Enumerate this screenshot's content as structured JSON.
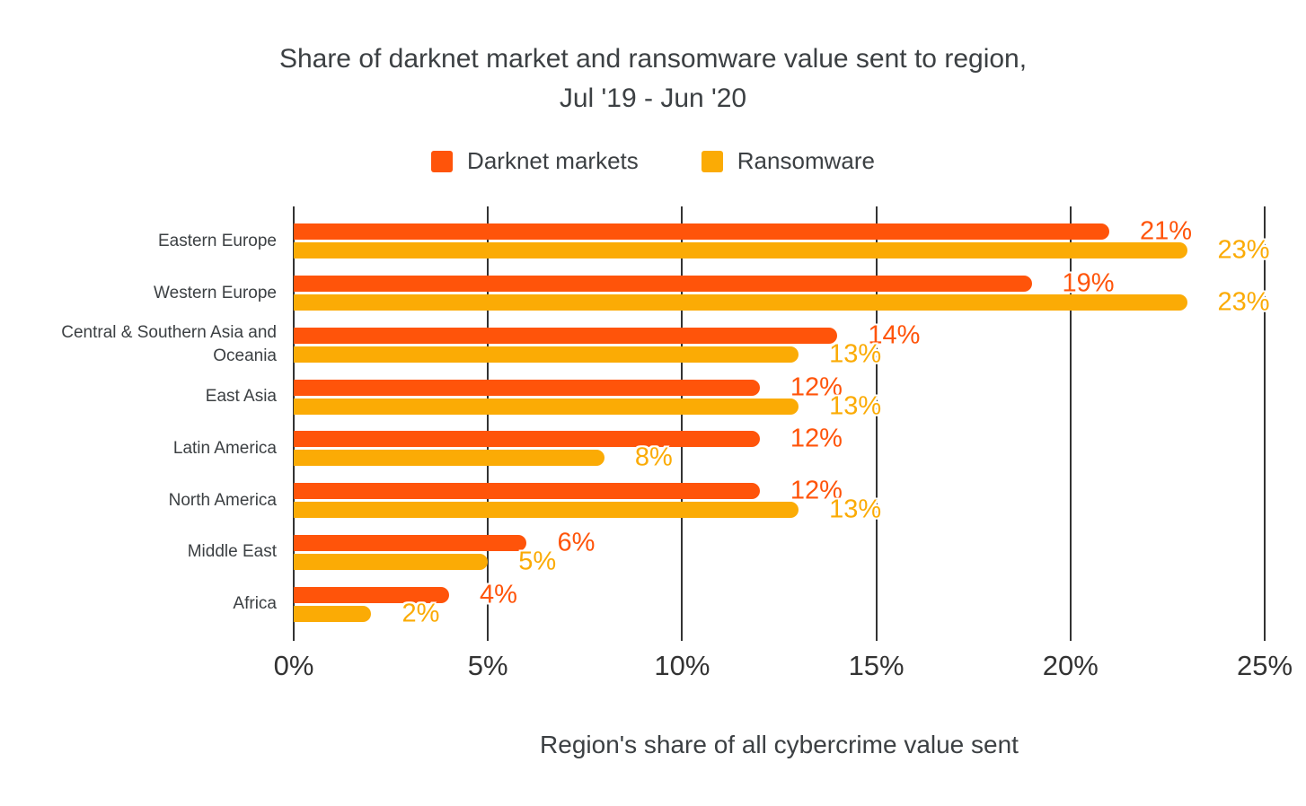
{
  "page": {
    "background": "#ffffff"
  },
  "title": {
    "line1": "Share of darknet market and ransomware value sent to region,",
    "line2": "Jul '19 - Jun '20"
  },
  "legend": {
    "items": [
      {
        "label": "Darknet markets",
        "color": "#FF540A"
      },
      {
        "label": "Ransomware",
        "color": "#FBAB05"
      }
    ]
  },
  "x_axis": {
    "title": "Region's share of all cybercrime value sent",
    "tick_labels": [
      "0%",
      "5%",
      "10%",
      "15%",
      "20%",
      "25%"
    ]
  },
  "chart_data": {
    "type": "bar",
    "orientation": "horizontal",
    "title": "Share of darknet market and ransomware value sent to region, Jul '19 - Jun '20",
    "categories": [
      "Eastern Europe",
      "Western Europe",
      "Central & Southern Asia and Oceania",
      "East Asia",
      "Latin America",
      "North America",
      "Middle East",
      "Africa"
    ],
    "series": [
      {
        "name": "Darknet markets",
        "color": "#FF540A",
        "values": [
          21,
          19,
          14,
          12,
          12,
          12,
          6,
          4
        ]
      },
      {
        "name": "Ransomware",
        "color": "#FBAB05",
        "values": [
          23,
          23,
          13,
          13,
          8,
          13,
          5,
          2
        ]
      }
    ],
    "value_label_suffix": "%",
    "xlabel": "Region's share of all cybercrime value sent",
    "ylabel": "",
    "xlim": [
      0,
      25
    ],
    "x_ticks": [
      0,
      5,
      10,
      15,
      20,
      25
    ],
    "grid": true,
    "legend_position": "top",
    "bar_value_labels_shown": true
  }
}
